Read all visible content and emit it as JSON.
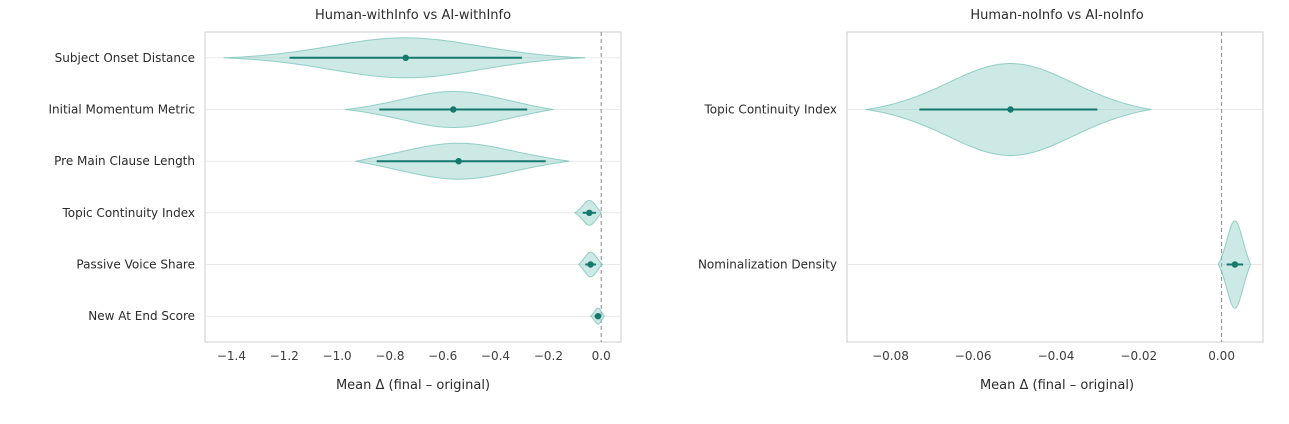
{
  "colors": {
    "violin_fill": "#8ecfc7",
    "violin_edge": "#7cc4bb",
    "accent": "#15796e",
    "zero_line": "#8a8a8a",
    "grid": "#e9e9e9",
    "axis_border": "#cccccc",
    "label_text": "#2b2b2b",
    "tick_text": "#3d3d3d"
  },
  "chart_data": [
    {
      "type": "violin",
      "orientation": "horizontal",
      "title": "Human-withInfo vs AI-withInfo",
      "xlabel": "Mean Δ (final – original)",
      "xlim": [
        -1.5,
        0.075
      ],
      "zero_reference_line": 0.0,
      "grid": "horizontal",
      "xticks": [
        {
          "v": -1.4,
          "label": "−1.4"
        },
        {
          "v": -1.2,
          "label": "−1.2"
        },
        {
          "v": -1.0,
          "label": "−1.0"
        },
        {
          "v": -0.8,
          "label": "−0.8"
        },
        {
          "v": -0.6,
          "label": "−0.6"
        },
        {
          "v": -0.4,
          "label": "−0.4"
        },
        {
          "v": -0.2,
          "label": "−0.2"
        },
        {
          "v": 0.0,
          "label": "0.0"
        }
      ],
      "rows": [
        {
          "label": "Subject Onset Distance",
          "mean": -0.74,
          "ci_lo": -1.18,
          "ci_hi": -0.3,
          "violin_min": -1.43,
          "violin_max": -0.06,
          "peak": -0.74,
          "sigma": 0.2,
          "rel_width": 1.0
        },
        {
          "label": "Initial Momentum Metric",
          "mean": -0.56,
          "ci_lo": -0.84,
          "ci_hi": -0.28,
          "violin_min": -0.97,
          "violin_max": -0.18,
          "peak": -0.56,
          "sigma": 0.23,
          "rel_width": 0.9
        },
        {
          "label": "Pre Main Clause Length",
          "mean": -0.54,
          "ci_lo": -0.85,
          "ci_hi": -0.21,
          "violin_min": -0.93,
          "violin_max": -0.12,
          "peak": -0.54,
          "sigma": 0.24,
          "rel_width": 0.9
        },
        {
          "label": "Topic Continuity Index",
          "mean": -0.045,
          "ci_lo": -0.07,
          "ci_hi": -0.02,
          "violin_min": -0.1,
          "violin_max": 0.0,
          "peak": -0.045,
          "sigma": 0.24,
          "rel_width": 0.62
        },
        {
          "label": "Passive Voice Share",
          "mean": -0.04,
          "ci_lo": -0.06,
          "ci_hi": -0.02,
          "violin_min": -0.085,
          "violin_max": 0.005,
          "peak": -0.04,
          "sigma": 0.24,
          "rel_width": 0.62
        },
        {
          "label": "New At End Score",
          "mean": -0.012,
          "ci_lo": -0.025,
          "ci_hi": 0.0,
          "violin_min": -0.04,
          "violin_max": 0.012,
          "peak": -0.012,
          "sigma": 0.24,
          "rel_width": 0.4
        }
      ]
    },
    {
      "type": "violin",
      "orientation": "horizontal",
      "title": "Human-noInfo vs AI-noInfo",
      "xlabel": "Mean Δ (final – original)",
      "xlim": [
        -0.0905,
        0.01
      ],
      "zero_reference_line": 0.0,
      "grid": "horizontal",
      "xticks": [
        {
          "v": -0.08,
          "label": "−0.08"
        },
        {
          "v": -0.06,
          "label": "−0.06"
        },
        {
          "v": -0.04,
          "label": "−0.04"
        },
        {
          "v": -0.02,
          "label": "−0.02"
        },
        {
          "v": 0.0,
          "label": "0.00"
        }
      ],
      "rows": [
        {
          "label": "Topic Continuity Index",
          "mean": -0.051,
          "ci_lo": -0.073,
          "ci_hi": -0.03,
          "violin_min": -0.086,
          "violin_max": -0.017,
          "peak": -0.051,
          "sigma": 0.21,
          "rel_width": 1.0
        },
        {
          "label": "Nominalization Density",
          "mean": 0.0032,
          "ci_lo": 0.0012,
          "ci_hi": 0.0052,
          "violin_min": -0.0008,
          "violin_max": 0.007,
          "peak": 0.0032,
          "sigma": 0.23,
          "rel_width": 0.95
        }
      ]
    }
  ]
}
